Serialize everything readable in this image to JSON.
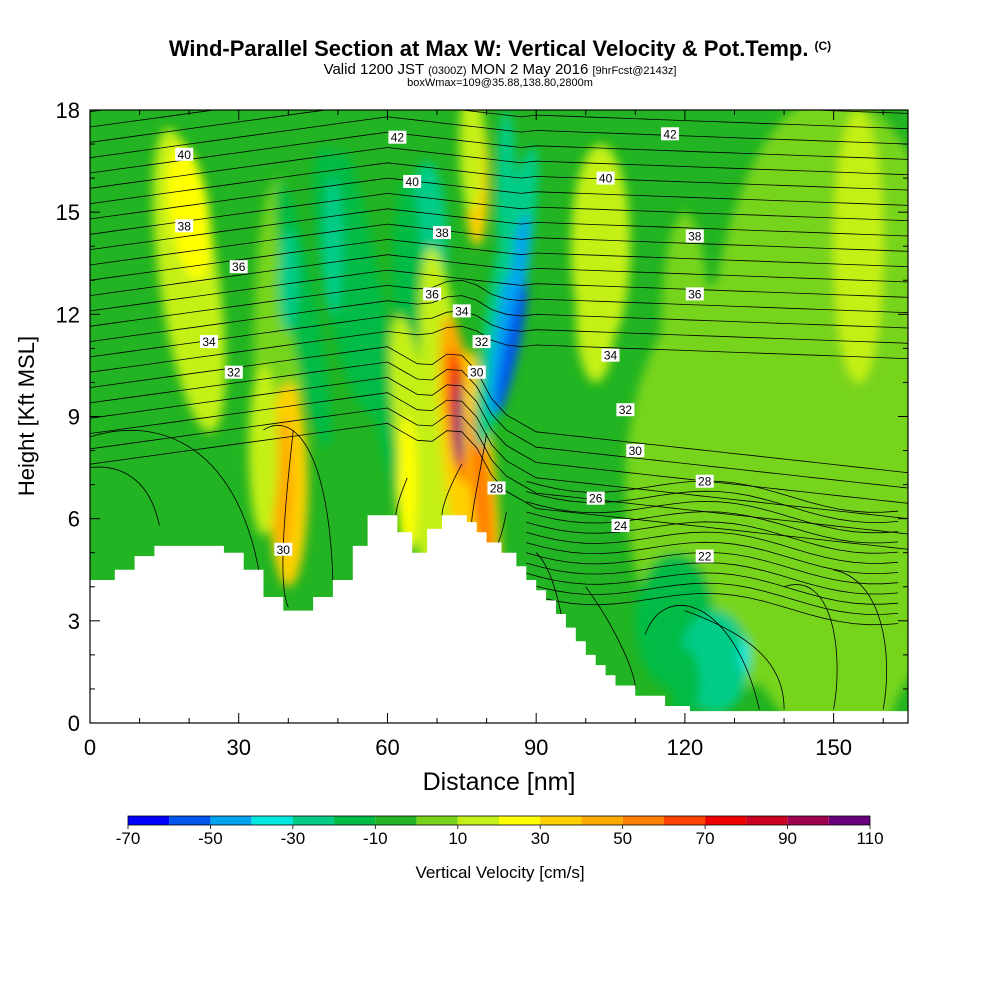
{
  "header": {
    "title": "Wind-Parallel Section at Max W: Vertical Velocity & Pot.Temp.",
    "copyright": "(C)",
    "valid_prefix": "Valid 1200 JST",
    "valid_utc": "(0300Z)",
    "valid_date": "MON 2 May 2016",
    "forecast": "[9hrFcst@2143z]",
    "box_info": "boxWmax=109@35.88,138.80,2800m"
  },
  "chart_data": {
    "type": "heatmap",
    "xlabel": "Distance [nm]",
    "ylabel": "Height [Kft MSL]",
    "xlim": [
      0,
      165
    ],
    "ylim": [
      0,
      18
    ],
    "x_ticks": [
      "0",
      "30",
      "60",
      "90",
      "120",
      "150"
    ],
    "x_tick_values": [
      0,
      30,
      60,
      90,
      120,
      150
    ],
    "y_ticks": [
      "0",
      "3",
      "6",
      "9",
      "12",
      "15",
      "18"
    ],
    "y_tick_values": [
      0,
      3,
      6,
      9,
      12,
      15,
      18
    ],
    "colorbar": {
      "title": "Vertical Velocity [cm/s]",
      "labels": [
        "-70",
        "-50",
        "-30",
        "-10",
        "10",
        "30",
        "50",
        "70",
        "90",
        "110"
      ],
      "colors": [
        "#0000ff",
        "#0055ee",
        "#00a5ee",
        "#00e8e0",
        "#00cc88",
        "#00bb44",
        "#22b422",
        "#77d41a",
        "#c4f019",
        "#ffff00",
        "#ffd000",
        "#ffaa00",
        "#ff7f00",
        "#ff4400",
        "#ee0000",
        "#cc0022",
        "#a00050",
        "#6a0080"
      ]
    },
    "terrain": [
      [
        0,
        4.2
      ],
      [
        5,
        4.2
      ],
      [
        5,
        4.5
      ],
      [
        9,
        4.5
      ],
      [
        9,
        4.9
      ],
      [
        13,
        4.9
      ],
      [
        13,
        5.2
      ],
      [
        20,
        5.2
      ],
      [
        20,
        5.2
      ],
      [
        27,
        5.2
      ],
      [
        27,
        5.0
      ],
      [
        31,
        5.0
      ],
      [
        31,
        4.5
      ],
      [
        35,
        4.5
      ],
      [
        35,
        3.7
      ],
      [
        39,
        3.7
      ],
      [
        39,
        3.3
      ],
      [
        45,
        3.3
      ],
      [
        45,
        3.7
      ],
      [
        49,
        3.7
      ],
      [
        49,
        4.2
      ],
      [
        53,
        4.2
      ],
      [
        53,
        5.2
      ],
      [
        56,
        5.2
      ],
      [
        56,
        6.1
      ],
      [
        62,
        6.1
      ],
      [
        62,
        5.6
      ],
      [
        65,
        5.6
      ],
      [
        65,
        5.0
      ],
      [
        68,
        5.0
      ],
      [
        68,
        5.7
      ],
      [
        71,
        5.7
      ],
      [
        71,
        6.1
      ],
      [
        76,
        6.1
      ],
      [
        76,
        5.9
      ],
      [
        78,
        5.9
      ],
      [
        78,
        5.6
      ],
      [
        80,
        5.6
      ],
      [
        80,
        5.3
      ],
      [
        83,
        5.3
      ],
      [
        83,
        5.0
      ],
      [
        86,
        5.0
      ],
      [
        86,
        4.6
      ],
      [
        88,
        4.6
      ],
      [
        88,
        4.2
      ],
      [
        90,
        4.2
      ],
      [
        90,
        3.9
      ],
      [
        92,
        3.9
      ],
      [
        92,
        3.6
      ],
      [
        94,
        3.6
      ],
      [
        94,
        3.2
      ],
      [
        96,
        3.2
      ],
      [
        96,
        2.8
      ],
      [
        98,
        2.8
      ],
      [
        98,
        2.4
      ],
      [
        100,
        2.4
      ],
      [
        100,
        2.0
      ],
      [
        102,
        2.0
      ],
      [
        102,
        1.7
      ],
      [
        104,
        1.7
      ],
      [
        104,
        1.4
      ],
      [
        106,
        1.4
      ],
      [
        106,
        1.1
      ],
      [
        110,
        1.1
      ],
      [
        110,
        0.8
      ],
      [
        116,
        0.8
      ],
      [
        116,
        0.5
      ],
      [
        121,
        0.5
      ],
      [
        121,
        0.35
      ],
      [
        165,
        0.35
      ]
    ],
    "theta_labels": [
      {
        "text": "42",
        "x": 62,
        "y": 17.2
      },
      {
        "text": "42",
        "x": 117,
        "y": 17.3
      },
      {
        "text": "40",
        "x": 19,
        "y": 16.7
      },
      {
        "text": "40",
        "x": 65,
        "y": 15.9
      },
      {
        "text": "40",
        "x": 104,
        "y": 16.0
      },
      {
        "text": "38",
        "x": 19,
        "y": 14.6
      },
      {
        "text": "38",
        "x": 71,
        "y": 14.4
      },
      {
        "text": "38",
        "x": 122,
        "y": 14.3
      },
      {
        "text": "36",
        "x": 30,
        "y": 13.4
      },
      {
        "text": "36",
        "x": 69,
        "y": 12.6
      },
      {
        "text": "36",
        "x": 122,
        "y": 12.6
      },
      {
        "text": "34",
        "x": 24,
        "y": 11.2
      },
      {
        "text": "34",
        "x": 75,
        "y": 12.1
      },
      {
        "text": "34",
        "x": 105,
        "y": 10.8
      },
      {
        "text": "32",
        "x": 29,
        "y": 10.3
      },
      {
        "text": "32",
        "x": 79,
        "y": 11.2
      },
      {
        "text": "32",
        "x": 108,
        "y": 9.2
      },
      {
        "text": "30",
        "x": 78,
        "y": 10.3
      },
      {
        "text": "30",
        "x": 110,
        "y": 8.0
      },
      {
        "text": "30",
        "x": 39,
        "y": 5.1
      },
      {
        "text": "28",
        "x": 82,
        "y": 6.9
      },
      {
        "text": "28",
        "x": 124,
        "y": 7.1
      },
      {
        "text": "26",
        "x": 102,
        "y": 6.6
      },
      {
        "text": "24",
        "x": 107,
        "y": 5.8
      },
      {
        "text": "22",
        "x": 124,
        "y": 4.9
      }
    ]
  }
}
